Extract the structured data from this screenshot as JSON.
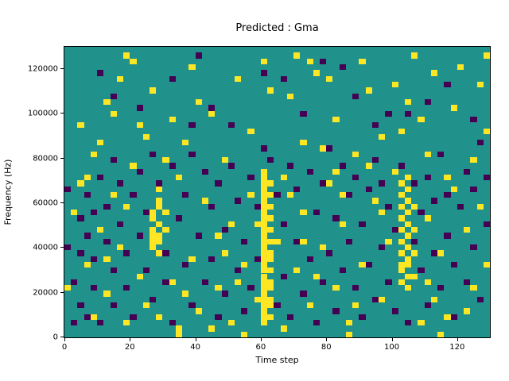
{
  "chart_data": {
    "type": "heatmap",
    "title": "Predicted : Gma",
    "xlabel": "Time step",
    "ylabel": "Frequency (Hz)",
    "xlim": [
      0,
      130
    ],
    "ylim": [
      0,
      130000
    ],
    "xticks": [
      0,
      20,
      40,
      60,
      80,
      100,
      120
    ],
    "yticks": [
      0,
      20000,
      40000,
      60000,
      80000,
      100000,
      120000
    ],
    "legend": "none",
    "grid_lines": "off",
    "colormap": "viridis",
    "colors": {
      "mid_background": "#21918c",
      "high": "#fde725",
      "low": "#440154",
      "axis": "#000000"
    },
    "grid": {
      "cols": 65,
      "rows": 50,
      "x_per_col": 2,
      "hz_per_row": 2600
    },
    "cells_high": [
      [
        30,
        2
      ],
      [
        30,
        3
      ],
      [
        30,
        4
      ],
      [
        30,
        5
      ],
      [
        30,
        6
      ],
      [
        30,
        7
      ],
      [
        30,
        8
      ],
      [
        30,
        9
      ],
      [
        30,
        10
      ],
      [
        30,
        11
      ],
      [
        30,
        12
      ],
      [
        30,
        13
      ],
      [
        30,
        14
      ],
      [
        30,
        15
      ],
      [
        30,
        16
      ],
      [
        30,
        17
      ],
      [
        30,
        18
      ],
      [
        30,
        19
      ],
      [
        30,
        20
      ],
      [
        30,
        21
      ],
      [
        30,
        22
      ],
      [
        30,
        23
      ],
      [
        30,
        24
      ],
      [
        30,
        25
      ],
      [
        30,
        26
      ],
      [
        30,
        27
      ],
      [
        30,
        28
      ],
      [
        31,
        3
      ],
      [
        31,
        5
      ],
      [
        31,
        6
      ],
      [
        31,
        8
      ],
      [
        31,
        9
      ],
      [
        31,
        11
      ],
      [
        31,
        13
      ],
      [
        31,
        14
      ],
      [
        31,
        16
      ],
      [
        31,
        18
      ],
      [
        31,
        20
      ],
      [
        31,
        22
      ],
      [
        31,
        24
      ],
      [
        31,
        26
      ],
      [
        13,
        15
      ],
      [
        13,
        16
      ],
      [
        13,
        17
      ],
      [
        13,
        18
      ],
      [
        13,
        20
      ],
      [
        13,
        21
      ],
      [
        14,
        14
      ],
      [
        14,
        16
      ],
      [
        14,
        17
      ],
      [
        14,
        19
      ],
      [
        14,
        22
      ],
      [
        14,
        23
      ],
      [
        14,
        25
      ],
      [
        15,
        18
      ],
      [
        15,
        21
      ],
      [
        51,
        9
      ],
      [
        51,
        11
      ],
      [
        51,
        12
      ],
      [
        51,
        14
      ],
      [
        51,
        16
      ],
      [
        51,
        18
      ],
      [
        51,
        20
      ],
      [
        51,
        22
      ],
      [
        51,
        24
      ],
      [
        51,
        26
      ],
      [
        52,
        8
      ],
      [
        52,
        10
      ],
      [
        52,
        12
      ],
      [
        52,
        13
      ],
      [
        52,
        15
      ],
      [
        52,
        17
      ],
      [
        52,
        19
      ],
      [
        52,
        21
      ],
      [
        52,
        23
      ],
      [
        52,
        25
      ],
      [
        52,
        27
      ],
      [
        53,
        10
      ],
      [
        53,
        14
      ],
      [
        53,
        18
      ],
      [
        53,
        22
      ],
      [
        1,
        21
      ],
      [
        2,
        26
      ],
      [
        2,
        36
      ],
      [
        3,
        12
      ],
      [
        4,
        3
      ],
      [
        4,
        31
      ],
      [
        5,
        18
      ],
      [
        6,
        7
      ],
      [
        6,
        40
      ],
      [
        7,
        24
      ],
      [
        8,
        15
      ],
      [
        8,
        44
      ],
      [
        9,
        2
      ],
      [
        10,
        29
      ],
      [
        11,
        10
      ],
      [
        11,
        36
      ],
      [
        12,
        5
      ],
      [
        13,
        42
      ],
      [
        16,
        9
      ],
      [
        17,
        1
      ],
      [
        17,
        27
      ],
      [
        18,
        33
      ],
      [
        19,
        13
      ],
      [
        19,
        46
      ],
      [
        20,
        4
      ],
      [
        21,
        23
      ],
      [
        22,
        38
      ],
      [
        23,
        8
      ],
      [
        23,
        17
      ],
      [
        24,
        30
      ],
      [
        25,
        2
      ],
      [
        26,
        44
      ],
      [
        27,
        12
      ],
      [
        28,
        35
      ],
      [
        29,
        6
      ],
      [
        32,
        16
      ],
      [
        33,
        27
      ],
      [
        33,
        1
      ],
      [
        34,
        41
      ],
      [
        35,
        11
      ],
      [
        36,
        21
      ],
      [
        36,
        33
      ],
      [
        37,
        5
      ],
      [
        38,
        45
      ],
      [
        39,
        15
      ],
      [
        40,
        26
      ],
      [
        41,
        8
      ],
      [
        41,
        37
      ],
      [
        42,
        19
      ],
      [
        43,
        2
      ],
      [
        44,
        31
      ],
      [
        45,
        12
      ],
      [
        46,
        42
      ],
      [
        47,
        23
      ],
      [
        48,
        6
      ],
      [
        48,
        34
      ],
      [
        49,
        16
      ],
      [
        50,
        28
      ],
      [
        54,
        37
      ],
      [
        55,
        9
      ],
      [
        55,
        20
      ],
      [
        56,
        45
      ],
      [
        57,
        14
      ],
      [
        58,
        27
      ],
      [
        58,
        3
      ],
      [
        59,
        39
      ],
      [
        61,
        18
      ],
      [
        62,
        8
      ],
      [
        62,
        30
      ],
      [
        63,
        22
      ],
      [
        63,
        43
      ],
      [
        64,
        12
      ],
      [
        0,
        8
      ],
      [
        5,
        33
      ],
      [
        10,
        47
      ],
      [
        15,
        30
      ],
      [
        20,
        40
      ],
      [
        25,
        19
      ],
      [
        30,
        47
      ],
      [
        35,
        48
      ],
      [
        40,
        44
      ],
      [
        45,
        47
      ],
      [
        50,
        43
      ],
      [
        55,
        31
      ],
      [
        60,
        46
      ],
      [
        14,
        3
      ],
      [
        9,
        22
      ],
      [
        24,
        14
      ],
      [
        34,
        24
      ],
      [
        44,
        5
      ],
      [
        54,
        2
      ],
      [
        59,
        25
      ],
      [
        64,
        35
      ],
      [
        7,
        38
      ],
      [
        18,
        7
      ],
      [
        28,
        24
      ],
      [
        38,
        10
      ],
      [
        48,
        21
      ],
      [
        3,
        27
      ],
      [
        12,
        34
      ],
      [
        22,
        1
      ],
      [
        31,
        42
      ],
      [
        41,
        28
      ],
      [
        51,
        35
      ],
      [
        61,
        4
      ],
      [
        16,
        37
      ],
      [
        26,
        9
      ],
      [
        36,
        16
      ],
      [
        46,
        29
      ],
      [
        56,
        6
      ],
      [
        6,
        13
      ],
      [
        39,
        32
      ],
      [
        52,
        40
      ],
      [
        29,
        19
      ],
      [
        42,
        24
      ],
      [
        17,
        0
      ],
      [
        27,
        0
      ],
      [
        43,
        0
      ],
      [
        57,
        0
      ],
      [
        9,
        48
      ],
      [
        37,
        47
      ],
      [
        53,
        48
      ],
      [
        64,
        48
      ]
    ],
    "cells_low": [
      [
        1,
        2
      ],
      [
        1,
        9
      ],
      [
        2,
        5
      ],
      [
        2,
        14
      ],
      [
        2,
        20
      ],
      [
        3,
        3
      ],
      [
        3,
        17
      ],
      [
        3,
        24
      ],
      [
        4,
        8
      ],
      [
        4,
        13
      ],
      [
        4,
        21
      ],
      [
        5,
        2
      ],
      [
        5,
        27
      ],
      [
        6,
        16
      ],
      [
        6,
        22
      ],
      [
        7,
        5
      ],
      [
        7,
        11
      ],
      [
        7,
        30
      ],
      [
        8,
        19
      ],
      [
        8,
        26
      ],
      [
        9,
        8
      ],
      [
        9,
        14
      ],
      [
        10,
        3
      ],
      [
        10,
        24
      ],
      [
        11,
        17
      ],
      [
        11,
        28
      ],
      [
        12,
        11
      ],
      [
        12,
        21
      ],
      [
        13,
        6
      ],
      [
        13,
        31
      ],
      [
        14,
        26
      ],
      [
        15,
        9
      ],
      [
        15,
        14
      ],
      [
        16,
        2
      ],
      [
        16,
        29
      ],
      [
        17,
        20
      ],
      [
        18,
        12
      ],
      [
        18,
        24
      ],
      [
        19,
        5
      ],
      [
        19,
        31
      ],
      [
        20,
        17
      ],
      [
        21,
        9
      ],
      [
        21,
        28
      ],
      [
        22,
        13
      ],
      [
        22,
        22
      ],
      [
        23,
        3
      ],
      [
        23,
        26
      ],
      [
        24,
        7
      ],
      [
        24,
        18
      ],
      [
        25,
        29
      ],
      [
        26,
        11
      ],
      [
        26,
        23
      ],
      [
        27,
        4
      ],
      [
        27,
        16
      ],
      [
        28,
        8
      ],
      [
        28,
        27
      ],
      [
        29,
        13
      ],
      [
        29,
        22
      ],
      [
        30,
        32
      ],
      [
        31,
        30
      ],
      [
        32,
        5
      ],
      [
        32,
        24
      ],
      [
        33,
        10
      ],
      [
        33,
        19
      ],
      [
        34,
        3
      ],
      [
        34,
        29
      ],
      [
        35,
        16
      ],
      [
        35,
        25
      ],
      [
        36,
        7
      ],
      [
        37,
        13
      ],
      [
        37,
        28
      ],
      [
        38,
        2
      ],
      [
        38,
        21
      ],
      [
        39,
        9
      ],
      [
        39,
        26
      ],
      [
        40,
        14
      ],
      [
        40,
        32
      ],
      [
        41,
        4
      ],
      [
        41,
        20
      ],
      [
        42,
        11
      ],
      [
        42,
        29
      ],
      [
        43,
        16
      ],
      [
        43,
        24
      ],
      [
        44,
        8
      ],
      [
        44,
        27
      ],
      [
        45,
        3
      ],
      [
        45,
        19
      ],
      [
        46,
        12
      ],
      [
        46,
        25
      ],
      [
        47,
        6
      ],
      [
        47,
        30
      ],
      [
        48,
        15
      ],
      [
        48,
        26
      ],
      [
        49,
        9
      ],
      [
        49,
        22
      ],
      [
        50,
        4
      ],
      [
        50,
        18
      ],
      [
        51,
        29
      ],
      [
        52,
        2
      ],
      [
        53,
        16
      ],
      [
        53,
        26
      ],
      [
        54,
        11
      ],
      [
        54,
        21
      ],
      [
        55,
        5
      ],
      [
        55,
        27
      ],
      [
        56,
        14
      ],
      [
        56,
        23
      ],
      [
        57,
        8
      ],
      [
        57,
        31
      ],
      [
        58,
        17
      ],
      [
        58,
        24
      ],
      [
        59,
        3
      ],
      [
        59,
        12
      ],
      [
        60,
        22
      ],
      [
        61,
        9
      ],
      [
        61,
        28
      ],
      [
        62,
        15
      ],
      [
        62,
        25
      ],
      [
        63,
        6
      ],
      [
        63,
        33
      ],
      [
        64,
        19
      ],
      [
        64,
        27
      ],
      [
        0,
        15
      ],
      [
        0,
        25
      ],
      [
        7,
        41
      ],
      [
        16,
        44
      ],
      [
        22,
        39
      ],
      [
        30,
        45
      ],
      [
        36,
        38
      ],
      [
        44,
        41
      ],
      [
        52,
        38
      ],
      [
        58,
        43
      ],
      [
        25,
        36
      ],
      [
        47,
        36
      ],
      [
        11,
        39
      ],
      [
        33,
        44
      ],
      [
        55,
        40
      ],
      [
        62,
        37
      ],
      [
        5,
        45
      ],
      [
        19,
        36
      ],
      [
        39,
        47
      ],
      [
        49,
        38
      ],
      [
        20,
        48
      ],
      [
        42,
        46
      ]
    ]
  }
}
